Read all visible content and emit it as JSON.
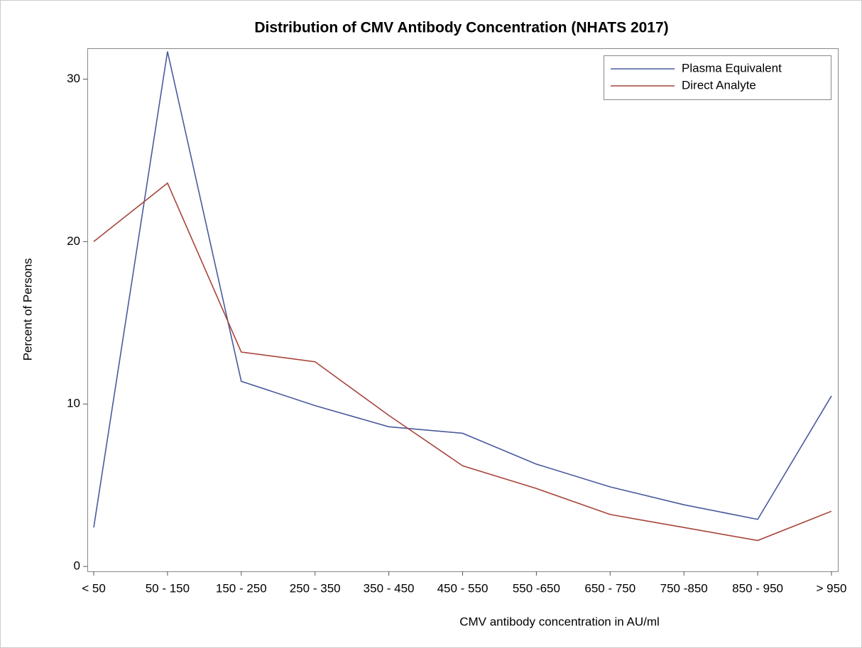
{
  "chart_data": {
    "type": "line",
    "title": "Distribution of CMV Antibody Concentration (NHATS 2017)",
    "x_label": "CMV antibody concentration in AU/ml",
    "y_label": "Percent of Persons",
    "categories": [
      "< 50",
      "50 - 150",
      "150 - 250",
      "250 - 350",
      "350 - 450",
      "450 - 550",
      "550 -650",
      "650 - 750",
      "750 -850",
      "850 - 950",
      "> 950"
    ],
    "series": [
      {
        "name": "Plasma Equivalent",
        "color": "#4a5a9c",
        "values": [
          2.4,
          31.7,
          11.4,
          9.9,
          8.6,
          8.2,
          6.3,
          4.9,
          3.8,
          2.9,
          10.5
        ]
      },
      {
        "name": "Direct Analyte",
        "color": "#a8443a",
        "values": [
          20.0,
          23.6,
          13.2,
          12.6,
          9.3,
          6.2,
          4.8,
          3.2,
          2.4,
          1.6,
          3.4
        ]
      }
    ],
    "ylim": [
      -0.3,
      31.9
    ],
    "yticks": [
      0,
      10,
      20,
      30
    ],
    "legend": "upper right"
  }
}
